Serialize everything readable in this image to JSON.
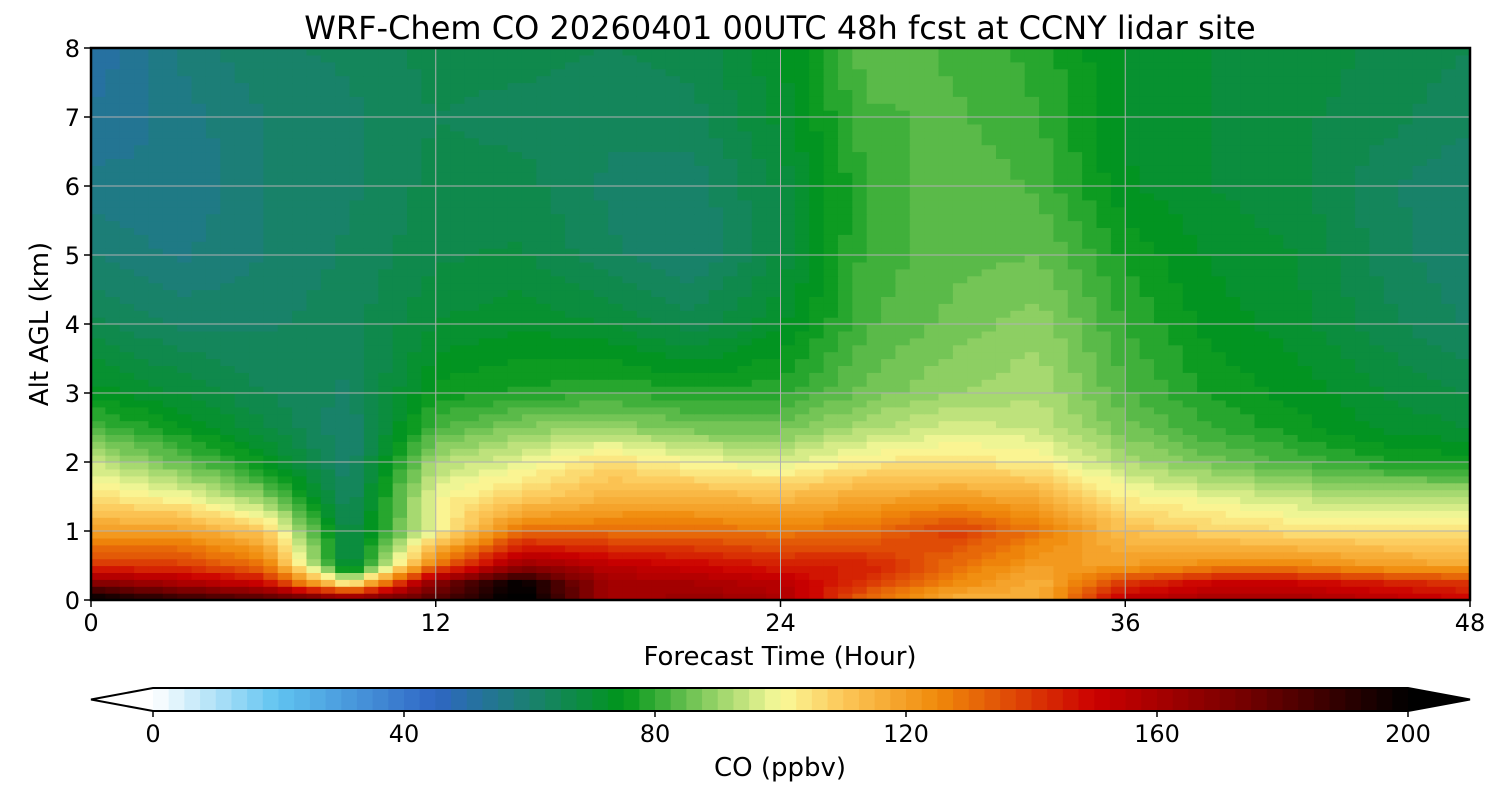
{
  "chart_data": {
    "type": "heatmap",
    "title": "WRF-Chem CO  20260401 00UTC 48h fcst at CCNY lidar site",
    "xlabel": "Forecast Time (Hour)",
    "ylabel": "Alt AGL (km)",
    "xlim": [
      0,
      48
    ],
    "ylim": [
      0,
      8
    ],
    "xticks": [
      0,
      12,
      24,
      36,
      48
    ],
    "yticks": [
      0,
      1,
      2,
      3,
      4,
      5,
      6,
      7,
      8
    ],
    "grid": true,
    "x": [
      0,
      3,
      6,
      9,
      12,
      15,
      18,
      21,
      24,
      27,
      30,
      33,
      36,
      39,
      42,
      45,
      48
    ],
    "y": [
      0,
      0.25,
      0.5,
      1,
      1.5,
      2,
      2.5,
      3,
      4,
      5,
      6,
      7,
      8
    ],
    "z": [
      [
        205,
        190,
        185,
        175,
        182,
        205,
        160,
        165,
        160,
        130,
        115,
        115,
        155,
        160,
        160,
        155,
        150
      ],
      [
        170,
        160,
        150,
        100,
        170,
        200,
        160,
        160,
        155,
        140,
        125,
        115,
        140,
        150,
        150,
        145,
        140
      ],
      [
        140,
        140,
        130,
        65,
        130,
        165,
        155,
        150,
        145,
        145,
        130,
        120,
        120,
        125,
        125,
        120,
        118
      ],
      [
        120,
        120,
        110,
        65,
        100,
        130,
        130,
        130,
        128,
        130,
        140,
        128,
        112,
        108,
        105,
        105,
        105
      ],
      [
        105,
        100,
        88,
        62,
        100,
        108,
        115,
        115,
        113,
        118,
        120,
        117,
        102,
        98,
        94,
        93,
        93
      ],
      [
        95,
        85,
        75,
        60,
        92,
        98,
        106,
        100,
        97,
        103,
        105,
        102,
        92,
        86,
        82,
        78,
        76
      ],
      [
        82,
        76,
        68,
        60,
        82,
        88,
        90,
        86,
        86,
        92,
        96,
        95,
        86,
        80,
        76,
        72,
        70
      ],
      [
        74,
        70,
        65,
        62,
        76,
        78,
        80,
        78,
        79,
        86,
        90,
        92,
        83,
        77,
        74,
        70,
        67
      ],
      [
        66,
        62,
        62,
        64,
        70,
        72,
        70,
        66,
        72,
        82,
        86,
        89,
        80,
        74,
        71,
        66,
        62
      ],
      [
        60,
        57,
        60,
        63,
        67,
        68,
        63,
        60,
        68,
        81,
        84,
        85,
        77,
        72,
        70,
        64,
        60
      ],
      [
        56,
        55,
        60,
        62,
        66,
        66,
        62,
        61,
        68,
        80,
        85,
        82,
        73,
        70,
        68,
        63,
        60
      ],
      [
        53,
        56,
        60,
        62,
        65,
        64,
        63,
        64,
        71,
        82,
        83,
        80,
        72,
        70,
        68,
        66,
        63
      ],
      [
        50,
        58,
        62,
        63,
        66,
        66,
        65,
        66,
        72,
        84,
        82,
        79,
        72,
        70,
        69,
        67,
        65
      ]
    ],
    "colorbar": {
      "label": "CO  (ppbv)",
      "min": 0,
      "max": 200,
      "step": 2.5,
      "ticks": [
        0,
        40,
        80,
        120,
        160,
        200
      ],
      "extend": "both",
      "stops": [
        {
          "v": 0,
          "c": "#ffffff"
        },
        {
          "v": 20,
          "c": "#5fc3f0"
        },
        {
          "v": 45,
          "c": "#2f66c4"
        },
        {
          "v": 60,
          "c": "#1a8070"
        },
        {
          "v": 75,
          "c": "#00961a"
        },
        {
          "v": 90,
          "c": "#9ad46a"
        },
        {
          "v": 100,
          "c": "#fafa9a"
        },
        {
          "v": 110,
          "c": "#fcc758"
        },
        {
          "v": 125,
          "c": "#f08a0a"
        },
        {
          "v": 150,
          "c": "#cc0000"
        },
        {
          "v": 175,
          "c": "#700000"
        },
        {
          "v": 200,
          "c": "#000000"
        }
      ]
    }
  }
}
